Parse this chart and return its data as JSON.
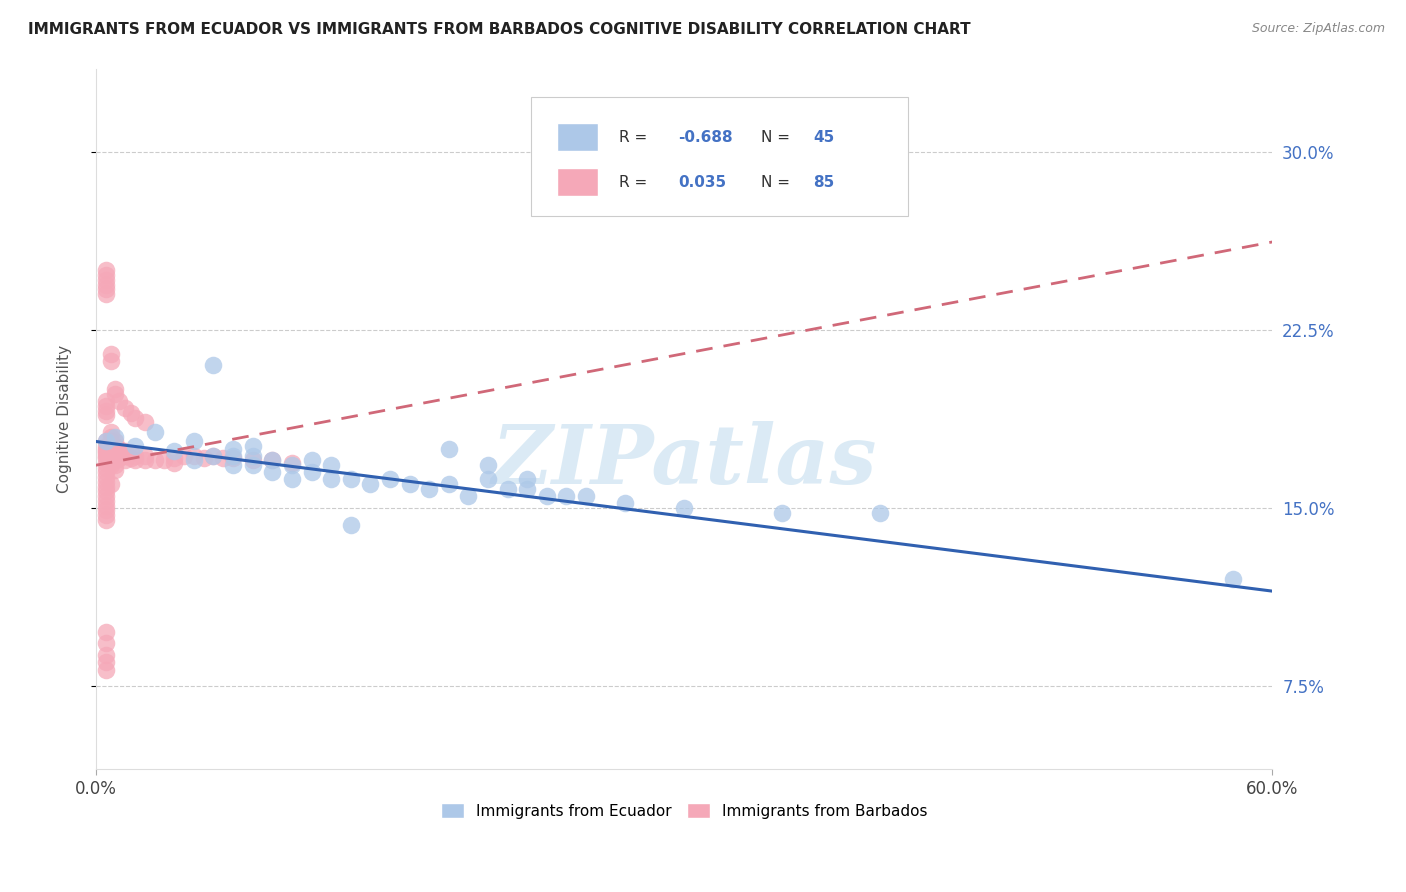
{
  "title": "IMMIGRANTS FROM ECUADOR VS IMMIGRANTS FROM BARBADOS COGNITIVE DISABILITY CORRELATION CHART",
  "source": "Source: ZipAtlas.com",
  "ylabel": "Cognitive Disability",
  "y_ticks": [
    0.075,
    0.15,
    0.225,
    0.3
  ],
  "y_tick_labels": [
    "7.5%",
    "15.0%",
    "22.5%",
    "30.0%"
  ],
  "xlim": [
    0.0,
    0.6
  ],
  "ylim": [
    0.04,
    0.335
  ],
  "ecuador_color": "#adc8e8",
  "barbados_color": "#f5a8b8",
  "ecuador_line_color": "#3060b0",
  "barbados_line_color": "#d06878",
  "ecuador_line_x0": 0.0,
  "ecuador_line_y0": 0.178,
  "ecuador_line_x1": 0.6,
  "ecuador_line_y1": 0.115,
  "barbados_line_x0": 0.0,
  "barbados_line_y0": 0.168,
  "barbados_line_x1": 0.6,
  "barbados_line_y1": 0.262,
  "watermark": "ZIPatlas",
  "ecuador_points_x": [
    0.005,
    0.01,
    0.02,
    0.03,
    0.04,
    0.05,
    0.05,
    0.06,
    0.06,
    0.07,
    0.07,
    0.08,
    0.08,
    0.08,
    0.09,
    0.09,
    0.1,
    0.1,
    0.11,
    0.11,
    0.12,
    0.12,
    0.13,
    0.14,
    0.15,
    0.16,
    0.17,
    0.18,
    0.19,
    0.2,
    0.21,
    0.22,
    0.23,
    0.25,
    0.27,
    0.3,
    0.18,
    0.2,
    0.22,
    0.24,
    0.35,
    0.4,
    0.58,
    0.13,
    0.07
  ],
  "ecuador_points_y": [
    0.178,
    0.18,
    0.176,
    0.182,
    0.174,
    0.178,
    0.17,
    0.21,
    0.172,
    0.175,
    0.168,
    0.168,
    0.172,
    0.176,
    0.165,
    0.17,
    0.162,
    0.168,
    0.165,
    0.17,
    0.162,
    0.168,
    0.162,
    0.16,
    0.162,
    0.16,
    0.158,
    0.16,
    0.155,
    0.162,
    0.158,
    0.158,
    0.155,
    0.155,
    0.152,
    0.15,
    0.175,
    0.168,
    0.162,
    0.155,
    0.148,
    0.148,
    0.12,
    0.143,
    0.172
  ],
  "barbados_points_x": [
    0.005,
    0.005,
    0.005,
    0.005,
    0.005,
    0.005,
    0.005,
    0.005,
    0.005,
    0.005,
    0.005,
    0.005,
    0.005,
    0.005,
    0.005,
    0.005,
    0.005,
    0.005,
    0.005,
    0.005,
    0.008,
    0.008,
    0.008,
    0.008,
    0.008,
    0.008,
    0.008,
    0.008,
    0.01,
    0.01,
    0.01,
    0.01,
    0.01,
    0.01,
    0.01,
    0.012,
    0.012,
    0.012,
    0.015,
    0.015,
    0.015,
    0.018,
    0.018,
    0.02,
    0.02,
    0.025,
    0.025,
    0.03,
    0.035,
    0.04,
    0.04,
    0.045,
    0.05,
    0.055,
    0.06,
    0.065,
    0.07,
    0.08,
    0.09,
    0.1,
    0.005,
    0.005,
    0.005,
    0.005,
    0.005,
    0.005,
    0.005,
    0.005,
    0.005,
    0.005,
    0.008,
    0.008,
    0.01,
    0.01,
    0.012,
    0.015,
    0.018,
    0.02,
    0.025,
    0.008,
    0.005,
    0.005,
    0.005,
    0.005,
    0.005
  ],
  "barbados_points_y": [
    0.175,
    0.173,
    0.171,
    0.169,
    0.167,
    0.165,
    0.163,
    0.161,
    0.159,
    0.157,
    0.178,
    0.176,
    0.174,
    0.172,
    0.155,
    0.153,
    0.151,
    0.149,
    0.147,
    0.145,
    0.182,
    0.18,
    0.178,
    0.176,
    0.174,
    0.172,
    0.17,
    0.168,
    0.178,
    0.176,
    0.174,
    0.172,
    0.17,
    0.168,
    0.166,
    0.175,
    0.173,
    0.171,
    0.174,
    0.172,
    0.17,
    0.173,
    0.171,
    0.172,
    0.17,
    0.172,
    0.17,
    0.17,
    0.17,
    0.171,
    0.169,
    0.172,
    0.172,
    0.171,
    0.172,
    0.171,
    0.171,
    0.17,
    0.17,
    0.169,
    0.25,
    0.248,
    0.246,
    0.244,
    0.242,
    0.24,
    0.195,
    0.193,
    0.191,
    0.189,
    0.215,
    0.212,
    0.2,
    0.198,
    0.195,
    0.192,
    0.19,
    0.188,
    0.186,
    0.16,
    0.098,
    0.093,
    0.088,
    0.085,
    0.082
  ]
}
